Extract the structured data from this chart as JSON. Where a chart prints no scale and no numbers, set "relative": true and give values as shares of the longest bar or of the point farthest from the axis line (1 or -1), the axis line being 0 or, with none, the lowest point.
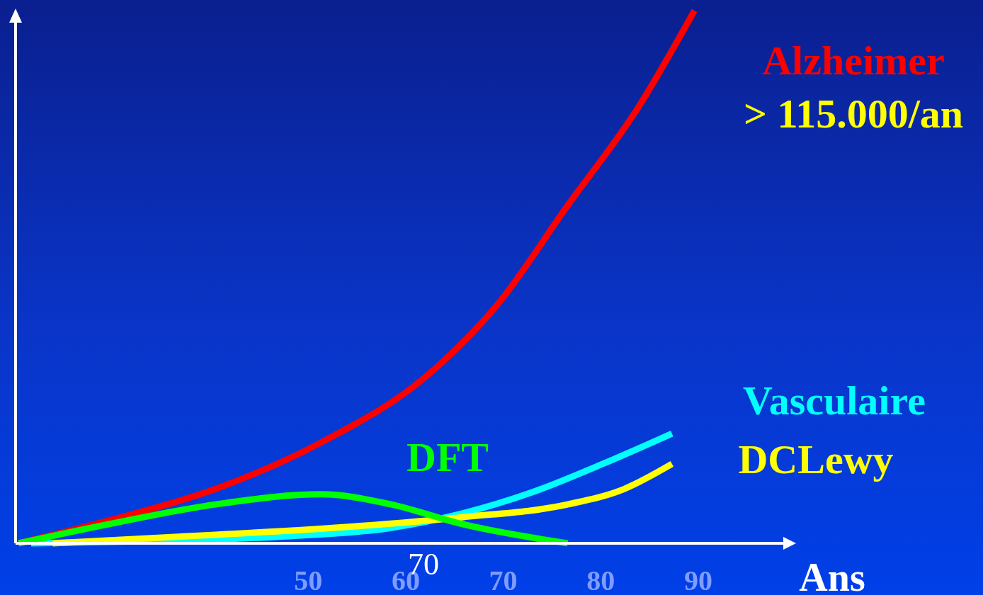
{
  "chart_data": {
    "type": "line",
    "relative": true,
    "xlabel": "Ans",
    "xlim": [
      20,
      99
    ],
    "xticks": [
      50,
      60,
      70,
      80,
      90
    ],
    "grid": false,
    "legend": false,
    "marker": "none",
    "line_style": "solid",
    "annotations": [
      "> 115.000/an",
      "70"
    ],
    "series": [
      {
        "name": "Alzheimer",
        "color": "#ff0000",
        "x": [
          20.3,
          29.6,
          40.5,
          51.3,
          62.2,
          69.4,
          76.6,
          83.9,
          89.6
        ],
        "values": [
          0,
          0.043,
          0.102,
          0.189,
          0.315,
          0.448,
          0.634,
          0.82,
          1
        ]
      },
      {
        "name": "Vasculaire",
        "color": "#00ffff",
        "x": [
          21.6,
          33.2,
          47.7,
          58.5,
          65.8,
          73.0,
          80.2,
          87.3
        ],
        "values": [
          0,
          0.004,
          0.013,
          0.029,
          0.056,
          0.096,
          0.149,
          0.206
        ]
      },
      {
        "name": "DCLewy",
        "color": "#ffff00",
        "x": [
          23.8,
          40.5,
          54.9,
          65.8,
          76.6,
          82.4,
          87.3
        ],
        "values": [
          0,
          0.016,
          0.032,
          0.049,
          0.073,
          0.102,
          0.149
        ]
      },
      {
        "name": "DFT",
        "color": "#00ff00",
        "x": [
          20.3,
          29.6,
          40.5,
          51.3,
          58.5,
          65.8,
          76.6
        ],
        "values": [
          0,
          0.036,
          0.073,
          0.092,
          0.073,
          0.036,
          0
        ]
      }
    ]
  }
}
